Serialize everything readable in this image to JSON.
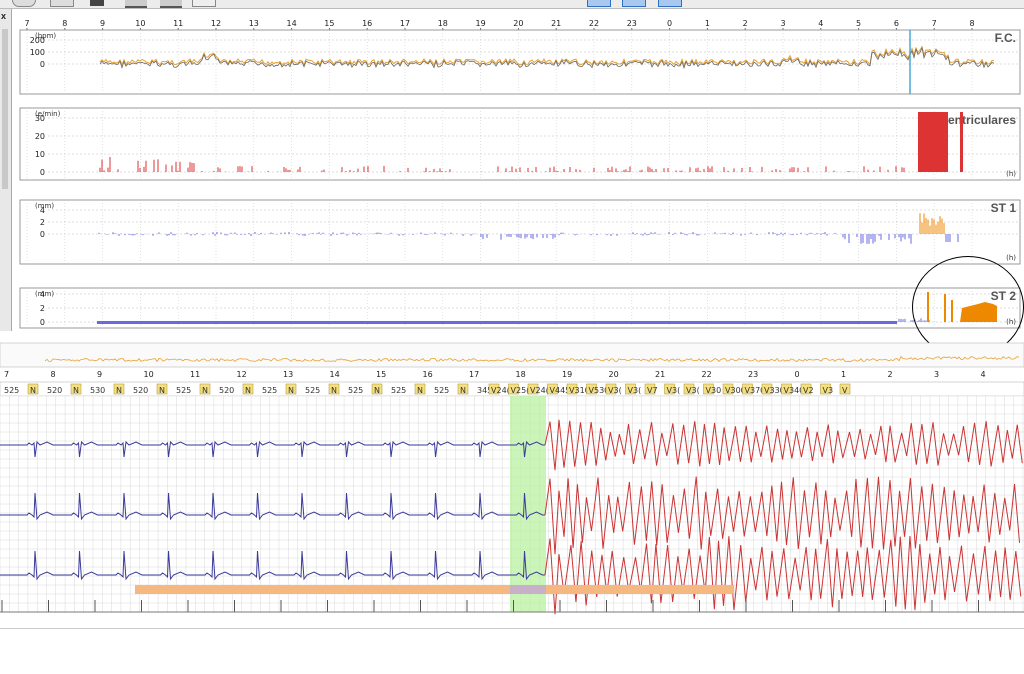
{
  "toolbar": {
    "icons": [
      "person-icon",
      "printer-icon",
      "pencil-icon",
      "monitor-icon",
      "monitor2-icon",
      "grid-icon",
      "layout1-icon",
      "layout2-icon",
      "layout3-icon"
    ]
  },
  "sidebar": {
    "close_label": "x"
  },
  "trend": {
    "hours": [
      "7",
      "8",
      "9",
      "10",
      "11",
      "12",
      "13",
      "14",
      "15",
      "16",
      "17",
      "18",
      "19",
      "20",
      "21",
      "22",
      "23",
      "0",
      "1",
      "2",
      "3",
      "4",
      "5",
      "6",
      "7",
      "8"
    ],
    "panels": [
      {
        "id": "hr",
        "title": "F.C.",
        "unit": "(bpm)",
        "ticks": [
          "200",
          "100",
          "0"
        ],
        "hunit": ""
      },
      {
        "id": "ventricular",
        "title": "entriculares",
        "unit": "(e/min)",
        "ticks": [
          "30",
          "20",
          "10",
          "0"
        ],
        "hunit": "(h)"
      },
      {
        "id": "st1",
        "title": "ST 1",
        "unit": "(mm)",
        "ticks": [
          "4",
          "2",
          "0"
        ],
        "hunit": "(h)"
      },
      {
        "id": "st2",
        "title": "ST 2",
        "unit": "(mm)",
        "ticks": [
          "4",
          "2",
          "0"
        ],
        "hunit": "(h)"
      }
    ]
  },
  "strip": {
    "minutes": [
      "7",
      "8",
      "9",
      "10",
      "11",
      "12",
      "13",
      "14",
      "15",
      "16",
      "17",
      "18",
      "19",
      "20",
      "21",
      "22",
      "23",
      "0",
      "1",
      "2",
      "3",
      "4"
    ],
    "beats": [
      {
        "v": "525",
        "t": "N"
      },
      {
        "v": "520",
        "t": "N"
      },
      {
        "v": "530",
        "t": "N"
      },
      {
        "v": "520",
        "t": "N"
      },
      {
        "v": "525",
        "t": "N"
      },
      {
        "v": "520",
        "t": "N"
      },
      {
        "v": "525",
        "t": "N"
      },
      {
        "v": "525",
        "t": "N"
      },
      {
        "v": "525",
        "t": "N"
      },
      {
        "v": "525",
        "t": "N"
      },
      {
        "v": "525",
        "t": "N"
      },
      {
        "v": "345",
        "t": "V"
      },
      {
        "v": "24(",
        "t": "V"
      },
      {
        "v": "25(",
        "t": "V"
      },
      {
        "v": "24(",
        "t": "V"
      },
      {
        "v": "445",
        "t": "V"
      },
      {
        "v": "310",
        "t": "V"
      },
      {
        "v": "530",
        "t": "V"
      },
      {
        "v": "3(",
        "t": "V"
      },
      {
        "v": "3(",
        "t": "V"
      },
      {
        "v": "7",
        "t": "V"
      },
      {
        "v": "3(",
        "t": "V"
      },
      {
        "v": "3(",
        "t": "V"
      },
      {
        "v": "30",
        "t": "V"
      },
      {
        "v": "300",
        "t": "V"
      },
      {
        "v": "370",
        "t": "V"
      },
      {
        "v": "330",
        "t": "V"
      },
      {
        "v": "340",
        "t": "V"
      },
      {
        "v": "2",
        "t": "V"
      },
      {
        "v": "3",
        "t": "V"
      }
    ]
  },
  "colors": {
    "normal_trace": "#3a3a9a",
    "vent_trace": "#cc3333",
    "hr_orange": "#e8a030",
    "vent_bar": "#dd3333",
    "st_blue": "#6a6ae0",
    "st_orange": "#ee8800",
    "highlight_green": "#b8f0a0",
    "bar_orange": "#f5b880",
    "circle": "#000000"
  }
}
